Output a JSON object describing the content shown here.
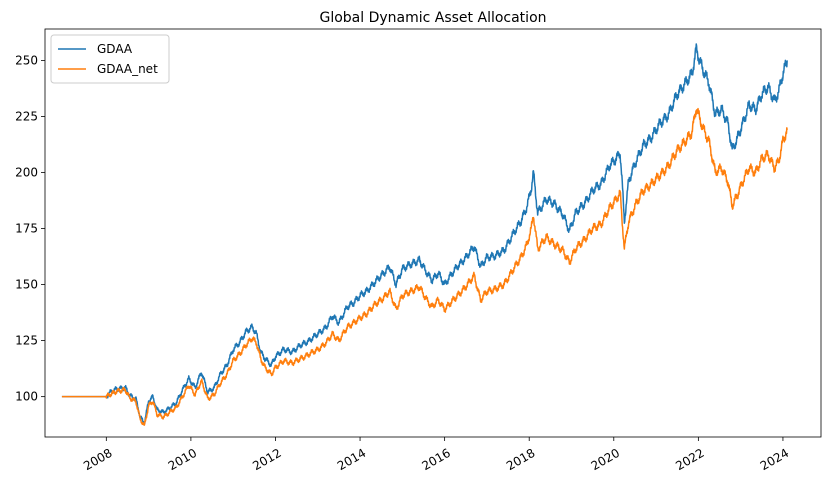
{
  "chart_data": {
    "type": "line",
    "title": "Global Dynamic Asset Allocation",
    "xlabel": "",
    "ylabel": "",
    "xlim": [
      2006.55,
      2024.9
    ],
    "ylim": [
      82,
      264
    ],
    "x_ticks": [
      2008,
      2010,
      2012,
      2014,
      2016,
      2018,
      2020,
      2022,
      2024
    ],
    "x_tick_labels": [
      "2008",
      "2010",
      "2012",
      "2014",
      "2016",
      "2018",
      "2020",
      "2022",
      "2024"
    ],
    "y_ticks": [
      100,
      125,
      150,
      175,
      200,
      225,
      250
    ],
    "y_tick_labels": [
      "100",
      "125",
      "150",
      "175",
      "200",
      "225",
      "250"
    ],
    "grid": false,
    "legend": {
      "placement": "top-left"
    },
    "series": [
      {
        "name": "GDAA",
        "color": "#1f77b4",
        "points": [
          [
            2006.95,
            100
          ],
          [
            2007.5,
            100
          ],
          [
            2008.0,
            100
          ],
          [
            2008.1,
            102
          ],
          [
            2008.25,
            103.5
          ],
          [
            2008.45,
            104
          ],
          [
            2008.55,
            100.5
          ],
          [
            2008.7,
            99
          ],
          [
            2008.8,
            91
          ],
          [
            2008.9,
            88
          ],
          [
            2009.0,
            98
          ],
          [
            2009.1,
            100
          ],
          [
            2009.2,
            94
          ],
          [
            2009.35,
            93
          ],
          [
            2009.5,
            95
          ],
          [
            2009.65,
            97
          ],
          [
            2009.8,
            103
          ],
          [
            2009.95,
            108
          ],
          [
            2010.1,
            104
          ],
          [
            2010.25,
            111
          ],
          [
            2010.4,
            102
          ],
          [
            2010.55,
            104
          ],
          [
            2010.7,
            110
          ],
          [
            2010.85,
            114
          ],
          [
            2011.0,
            121
          ],
          [
            2011.15,
            124
          ],
          [
            2011.3,
            129
          ],
          [
            2011.45,
            131
          ],
          [
            2011.55,
            128
          ],
          [
            2011.65,
            120
          ],
          [
            2011.75,
            117
          ],
          [
            2011.9,
            114
          ],
          [
            2012.0,
            118
          ],
          [
            2012.2,
            121
          ],
          [
            2012.4,
            120
          ],
          [
            2012.6,
            123
          ],
          [
            2012.8,
            125
          ],
          [
            2013.0,
            128
          ],
          [
            2013.2,
            131
          ],
          [
            2013.35,
            136
          ],
          [
            2013.5,
            133
          ],
          [
            2013.7,
            140
          ],
          [
            2013.85,
            142
          ],
          [
            2014.0,
            145
          ],
          [
            2014.15,
            147
          ],
          [
            2014.35,
            151
          ],
          [
            2014.55,
            155
          ],
          [
            2014.7,
            158
          ],
          [
            2014.85,
            150
          ],
          [
            2015.0,
            157
          ],
          [
            2015.2,
            159
          ],
          [
            2015.4,
            161
          ],
          [
            2015.55,
            156
          ],
          [
            2015.7,
            152
          ],
          [
            2015.85,
            155
          ],
          [
            2016.0,
            150
          ],
          [
            2016.1,
            153
          ],
          [
            2016.3,
            158
          ],
          [
            2016.5,
            162
          ],
          [
            2016.7,
            167
          ],
          [
            2016.85,
            158
          ],
          [
            2017.0,
            162
          ],
          [
            2017.2,
            163
          ],
          [
            2017.4,
            165
          ],
          [
            2017.6,
            172
          ],
          [
            2017.8,
            178
          ],
          [
            2017.95,
            185
          ],
          [
            2018.05,
            193
          ],
          [
            2018.1,
            200
          ],
          [
            2018.2,
            182
          ],
          [
            2018.4,
            188
          ],
          [
            2018.6,
            186
          ],
          [
            2018.8,
            181
          ],
          [
            2018.95,
            174
          ],
          [
            2019.1,
            182
          ],
          [
            2019.3,
            186
          ],
          [
            2019.5,
            192
          ],
          [
            2019.7,
            195
          ],
          [
            2019.9,
            203
          ],
          [
            2020.05,
            206
          ],
          [
            2020.15,
            209
          ],
          [
            2020.2,
            195
          ],
          [
            2020.25,
            178
          ],
          [
            2020.35,
            196
          ],
          [
            2020.5,
            204
          ],
          [
            2020.7,
            212
          ],
          [
            2020.9,
            216
          ],
          [
            2021.1,
            222
          ],
          [
            2021.3,
            226
          ],
          [
            2021.5,
            235
          ],
          [
            2021.7,
            240
          ],
          [
            2021.85,
            244
          ],
          [
            2021.95,
            255
          ],
          [
            2022.1,
            246
          ],
          [
            2022.25,
            240
          ],
          [
            2022.4,
            226
          ],
          [
            2022.55,
            228
          ],
          [
            2022.7,
            222
          ],
          [
            2022.8,
            210
          ],
          [
            2022.9,
            214
          ],
          [
            2023.05,
            222
          ],
          [
            2023.2,
            230
          ],
          [
            2023.35,
            228
          ],
          [
            2023.5,
            235
          ],
          [
            2023.65,
            238
          ],
          [
            2023.8,
            232
          ],
          [
            2023.9,
            236
          ],
          [
            2024.0,
            244
          ],
          [
            2024.1,
            250
          ]
        ]
      },
      {
        "name": "GDAA_net",
        "color": "#ff7f0e",
        "points": [
          [
            2006.95,
            100
          ],
          [
            2007.5,
            100
          ],
          [
            2008.0,
            100
          ],
          [
            2008.1,
            101
          ],
          [
            2008.25,
            102.5
          ],
          [
            2008.45,
            103
          ],
          [
            2008.55,
            99.5
          ],
          [
            2008.7,
            98
          ],
          [
            2008.8,
            90
          ],
          [
            2008.9,
            87
          ],
          [
            2009.0,
            96
          ],
          [
            2009.1,
            98
          ],
          [
            2009.2,
            92
          ],
          [
            2009.35,
            91
          ],
          [
            2009.5,
            93
          ],
          [
            2009.65,
            95
          ],
          [
            2009.8,
            100
          ],
          [
            2009.95,
            105
          ],
          [
            2010.1,
            101
          ],
          [
            2010.25,
            107
          ],
          [
            2010.4,
            99
          ],
          [
            2010.55,
            101
          ],
          [
            2010.7,
            106
          ],
          [
            2010.85,
            110
          ],
          [
            2011.0,
            116
          ],
          [
            2011.15,
            119
          ],
          [
            2011.3,
            123
          ],
          [
            2011.45,
            126
          ],
          [
            2011.55,
            124
          ],
          [
            2011.65,
            117
          ],
          [
            2011.75,
            113
          ],
          [
            2011.9,
            110
          ],
          [
            2012.0,
            113
          ],
          [
            2012.2,
            116
          ],
          [
            2012.4,
            115
          ],
          [
            2012.6,
            117
          ],
          [
            2012.8,
            119
          ],
          [
            2013.0,
            121
          ],
          [
            2013.2,
            124
          ],
          [
            2013.35,
            128
          ],
          [
            2013.5,
            125
          ],
          [
            2013.7,
            131
          ],
          [
            2013.85,
            133
          ],
          [
            2014.0,
            135
          ],
          [
            2014.15,
            137
          ],
          [
            2014.35,
            141
          ],
          [
            2014.55,
            144
          ],
          [
            2014.7,
            147
          ],
          [
            2014.85,
            139
          ],
          [
            2015.0,
            145
          ],
          [
            2015.2,
            147
          ],
          [
            2015.4,
            149
          ],
          [
            2015.55,
            144
          ],
          [
            2015.7,
            140
          ],
          [
            2015.85,
            143
          ],
          [
            2016.0,
            139
          ],
          [
            2016.1,
            141
          ],
          [
            2016.3,
            145
          ],
          [
            2016.5,
            149
          ],
          [
            2016.7,
            154
          ],
          [
            2016.85,
            143
          ],
          [
            2017.0,
            147
          ],
          [
            2017.2,
            148
          ],
          [
            2017.4,
            150
          ],
          [
            2017.6,
            156
          ],
          [
            2017.8,
            162
          ],
          [
            2017.95,
            168
          ],
          [
            2018.05,
            175
          ],
          [
            2018.1,
            181
          ],
          [
            2018.2,
            166
          ],
          [
            2018.4,
            171
          ],
          [
            2018.6,
            168
          ],
          [
            2018.8,
            165
          ],
          [
            2018.95,
            160
          ],
          [
            2019.1,
            166
          ],
          [
            2019.3,
            170
          ],
          [
            2019.5,
            175
          ],
          [
            2019.7,
            177
          ],
          [
            2019.9,
            184
          ],
          [
            2020.05,
            188
          ],
          [
            2020.15,
            191
          ],
          [
            2020.2,
            178
          ],
          [
            2020.25,
            166
          ],
          [
            2020.35,
            178
          ],
          [
            2020.5,
            185
          ],
          [
            2020.7,
            192
          ],
          [
            2020.9,
            195
          ],
          [
            2021.1,
            199
          ],
          [
            2021.3,
            203
          ],
          [
            2021.5,
            210
          ],
          [
            2021.7,
            214
          ],
          [
            2021.85,
            218
          ],
          [
            2021.95,
            229
          ],
          [
            2022.1,
            220
          ],
          [
            2022.25,
            214
          ],
          [
            2022.4,
            200
          ],
          [
            2022.55,
            202
          ],
          [
            2022.7,
            196
          ],
          [
            2022.8,
            185
          ],
          [
            2022.9,
            189
          ],
          [
            2023.05,
            196
          ],
          [
            2023.2,
            202
          ],
          [
            2023.35,
            200
          ],
          [
            2023.5,
            206
          ],
          [
            2023.65,
            208
          ],
          [
            2023.8,
            202
          ],
          [
            2023.9,
            205
          ],
          [
            2024.0,
            214
          ],
          [
            2024.1,
            219
          ]
        ]
      }
    ]
  }
}
